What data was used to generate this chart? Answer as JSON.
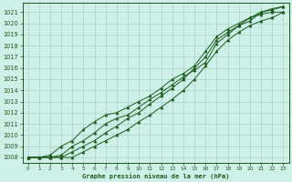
{
  "title": "Graphe pression niveau de la mer (hPa)",
  "bg_color": "#cff0e8",
  "grid_color": "#aad8cc",
  "line_color": "#1a5c1a",
  "marker_color": "#1a5c1a",
  "xlabel": "Graphe pression niveau de la mer (hPa)",
  "xlim": [
    -0.5,
    23.5
  ],
  "ylim": [
    1007.5,
    1021.8
  ],
  "yticks": [
    1008,
    1009,
    1010,
    1011,
    1012,
    1013,
    1014,
    1015,
    1016,
    1017,
    1018,
    1019,
    1020,
    1021
  ],
  "xticks": [
    0,
    1,
    2,
    3,
    4,
    5,
    6,
    7,
    8,
    9,
    10,
    11,
    12,
    13,
    14,
    15,
    16,
    17,
    18,
    19,
    20,
    21,
    22,
    23
  ],
  "series": [
    [
      1008.0,
      1008.0,
      1008.0,
      1008.0,
      1008.0,
      1008.5,
      1009.0,
      1009.5,
      1010.0,
      1010.5,
      1011.2,
      1011.8,
      1012.5,
      1013.2,
      1014.0,
      1015.0,
      1016.2,
      1017.5,
      1018.5,
      1019.2,
      1019.8,
      1020.2,
      1020.5,
      1021.0
    ],
    [
      1008.0,
      1008.0,
      1008.0,
      1008.2,
      1009.0,
      1009.5,
      1010.2,
      1011.0,
      1011.5,
      1011.8,
      1012.5,
      1013.2,
      1013.8,
      1014.5,
      1015.2,
      1015.8,
      1016.5,
      1018.2,
      1019.0,
      1019.8,
      1020.2,
      1021.0,
      1021.2,
      1021.5
    ],
    [
      1008.0,
      1008.0,
      1008.2,
      1009.0,
      1009.5,
      1010.5,
      1011.2,
      1011.8,
      1012.0,
      1012.5,
      1013.0,
      1013.5,
      1014.2,
      1015.0,
      1015.5,
      1016.2,
      1017.5,
      1018.8,
      1019.5,
      1020.0,
      1020.5,
      1021.0,
      1021.3,
      1021.5
    ],
    [
      1008.0,
      1008.0,
      1008.0,
      1008.0,
      1008.5,
      1009.0,
      1009.5,
      1010.2,
      1010.8,
      1011.5,
      1012.0,
      1012.8,
      1013.5,
      1014.2,
      1015.0,
      1016.0,
      1017.0,
      1018.5,
      1019.2,
      1019.8,
      1020.5,
      1020.8,
      1021.0,
      1021.0
    ]
  ]
}
